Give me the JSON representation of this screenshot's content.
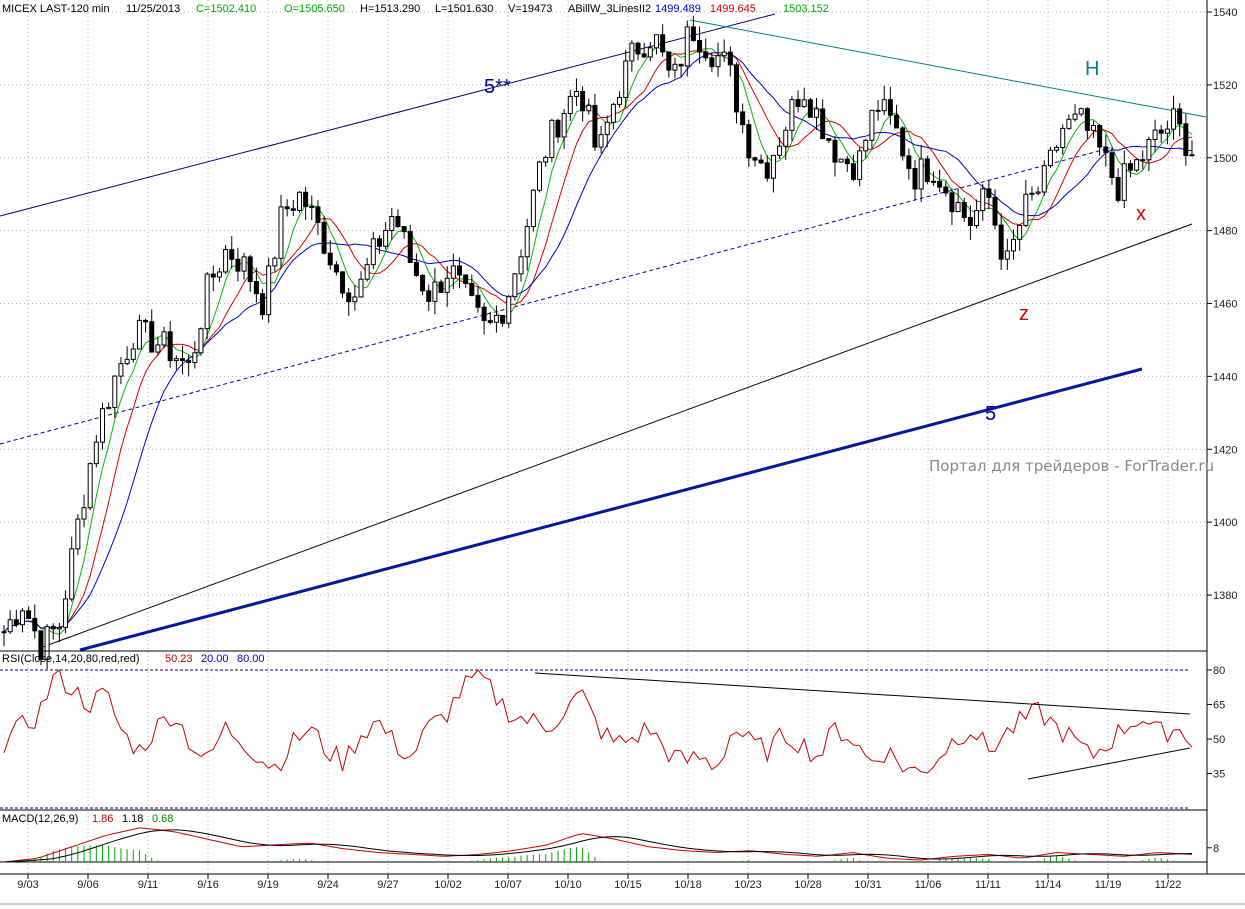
{
  "header": {
    "symbol": "MICEX LAST-120 min",
    "date": "11/25/2013",
    "close": "C=1502.410",
    "open": "O=1505.650",
    "high": "H=1513.290",
    "low": "L=1501.630",
    "volume": "V=19473",
    "indicator": "ABillW_3LinesII2",
    "ind_v1": "1499.489",
    "ind_v2": "1499.645",
    "ind_v3": "1503.152"
  },
  "rsi_header": {
    "label": "RSI(Close,14,20,80,red,red)",
    "v1": "50.23",
    "v2": "20.00",
    "v3": "80.00"
  },
  "macd_header": {
    "label": "MACD(12,26,9)",
    "v1": "1.86",
    "v2": "1.18",
    "v3": "0.68"
  },
  "watermark": "Портал для трейдеров - ForTrader.ru",
  "wave_labels": {
    "five_starstar": "5**",
    "H": "H",
    "z": "z",
    "x": "x",
    "five": "5"
  },
  "colors": {
    "candles": "#000000",
    "ma_fast": "#00bb00",
    "ma_mid": "#dd0000",
    "ma_slow": "#0000cc",
    "rsi": "#cc0000",
    "channel": "#000080",
    "resistance": "#008080",
    "wave_blue": "#000099",
    "wave_red": "#dd0000",
    "wave_teal": "#008080"
  },
  "chart_data": [
    {
      "type": "candlestick",
      "title": "MICEX LAST-120 min",
      "x_ticks": [
        "9/03",
        "9/06",
        "9/11",
        "9/16",
        "9/19",
        "9/24",
        "9/27",
        "10/02",
        "10/07",
        "10/10",
        "10/15",
        "10/18",
        "10/23",
        "10/28",
        "10/31",
        "11/06",
        "11/11",
        "11/14",
        "11/19",
        "11/22"
      ],
      "y_ticks": [
        1380,
        1400,
        1420,
        1440,
        1460,
        1480,
        1500,
        1520,
        1540
      ],
      "ylim": [
        1364,
        1542
      ],
      "close_path": [
        [
          0,
          1370
        ],
        [
          3,
          1378
        ],
        [
          6,
          1366
        ],
        [
          9,
          1372
        ],
        [
          12,
          1400
        ],
        [
          15,
          1425
        ],
        [
          18,
          1440
        ],
        [
          21,
          1452
        ],
        [
          24,
          1450
        ],
        [
          27,
          1447
        ],
        [
          30,
          1442
        ],
        [
          33,
          1465
        ],
        [
          36,
          1475
        ],
        [
          39,
          1470
        ],
        [
          42,
          1460
        ],
        [
          45,
          1485
        ],
        [
          48,
          1490
        ],
        [
          51,
          1480
        ],
        [
          54,
          1468
        ],
        [
          57,
          1462
        ],
        [
          60,
          1475
        ],
        [
          63,
          1485
        ],
        [
          66,
          1470
        ],
        [
          69,
          1462
        ],
        [
          72,
          1470
        ],
        [
          75,
          1460
        ],
        [
          78,
          1452
        ],
        [
          81,
          1460
        ],
        [
          84,
          1478
        ],
        [
          87,
          1500
        ],
        [
          90,
          1512
        ],
        [
          93,
          1520
        ],
        [
          96,
          1500
        ],
        [
          99,
          1518
        ],
        [
          102,
          1530
        ],
        [
          105,
          1534
        ],
        [
          108,
          1520
        ],
        [
          111,
          1536
        ],
        [
          114,
          1530
        ],
        [
          117,
          1525
        ],
        [
          120,
          1505
        ],
        [
          123,
          1497
        ],
        [
          126,
          1508
        ],
        [
          129,
          1520
        ],
        [
          132,
          1510
        ],
        [
          135,
          1500
        ],
        [
          138,
          1498
        ],
        [
          141,
          1515
        ],
        [
          144,
          1508
        ],
        [
          147,
          1495
        ],
        [
          150,
          1498
        ],
        [
          153,
          1490
        ],
        [
          156,
          1482
        ],
        [
          159,
          1490
        ],
        [
          162,
          1470
        ],
        [
          165,
          1486
        ],
        [
          168,
          1493
        ],
        [
          171,
          1508
        ],
        [
          174,
          1510
        ],
        [
          177,
          1502
        ],
        [
          180,
          1492
        ],
        [
          183,
          1498
        ],
        [
          186,
          1505
        ],
        [
          189,
          1510
        ],
        [
          192,
          1502
        ]
      ]
    },
    {
      "type": "line",
      "title": "RSI(Close,14,20,80,red,red)",
      "y_ticks": [
        35,
        50,
        65,
        80
      ],
      "ylim": [
        20,
        80
      ],
      "values": [
        48,
        55,
        60,
        78,
        72,
        65,
        70,
        52,
        45,
        55,
        62,
        48,
        40,
        55,
        50,
        42,
        38,
        48,
        55,
        45,
        40,
        52,
        58,
        48,
        42,
        55,
        60,
        72,
        78,
        68,
        60,
        58,
        55,
        62,
        70,
        55,
        48,
        50,
        55,
        45,
        40,
        42,
        38,
        55,
        48,
        45,
        52,
        48,
        42,
        55,
        50,
        40,
        45,
        38,
        35,
        42,
        50,
        55,
        45,
        52,
        58,
        62,
        55,
        50,
        42,
        48,
        55,
        60,
        52,
        55,
        50
      ]
    },
    {
      "type": "line",
      "title": "MACD(12,26,9)",
      "y_ticks": [
        8
      ],
      "values": [
        0,
        2,
        8,
        14,
        18,
        16,
        12,
        8,
        9,
        10,
        7,
        5,
        4,
        3,
        4,
        6,
        9,
        15,
        12,
        8,
        6,
        5,
        6,
        4,
        3,
        5,
        2,
        1,
        3,
        4,
        2,
        5,
        4,
        3,
        5,
        4
      ]
    }
  ]
}
